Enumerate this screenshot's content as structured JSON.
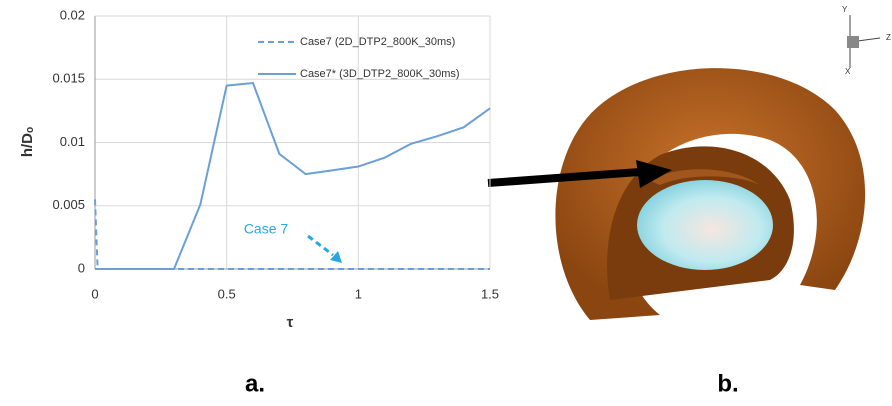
{
  "chart_data": {
    "type": "line",
    "xlabel": "τ",
    "ylabel": "h/Dₒ",
    "series": [
      {
        "name": "Case7 (2D_DTP2_800K_30ms)",
        "color": "#6a9fd8",
        "dash": true,
        "x": [
          0,
          0.01,
          0.5,
          1,
          1.5
        ],
        "values": [
          0.0055,
          0,
          0,
          0,
          0
        ]
      },
      {
        "name": "Case7* (3D_DTP2_800K_30ms)",
        "color": "#6a9fd8",
        "dash": false,
        "x": [
          0,
          0.1,
          0.2,
          0.3,
          0.4,
          0.5,
          0.6,
          0.7,
          0.8,
          0.9,
          1.0,
          1.1,
          1.2,
          1.3,
          1.4,
          1.5
        ],
        "values": [
          0,
          0,
          0,
          0,
          0.0051,
          0.0145,
          0.0147,
          0.0091,
          0.0075,
          0.0078,
          0.0081,
          0.0088,
          0.0099,
          0.0105,
          0.0112,
          0.0127
        ]
      }
    ],
    "xlim": [
      0,
      1.5
    ],
    "xticks": [
      0,
      0.5,
      1,
      1.5
    ],
    "ylim": [
      0,
      0.02
    ],
    "yticks": [
      0,
      0.005,
      0.01,
      0.015,
      0.02
    ],
    "grid": true,
    "legend": "upper right",
    "annotation": "Case 7",
    "panel_labels": [
      "a.",
      "b."
    ],
    "triad_labels": [
      "Y",
      "Z",
      "X"
    ]
  }
}
